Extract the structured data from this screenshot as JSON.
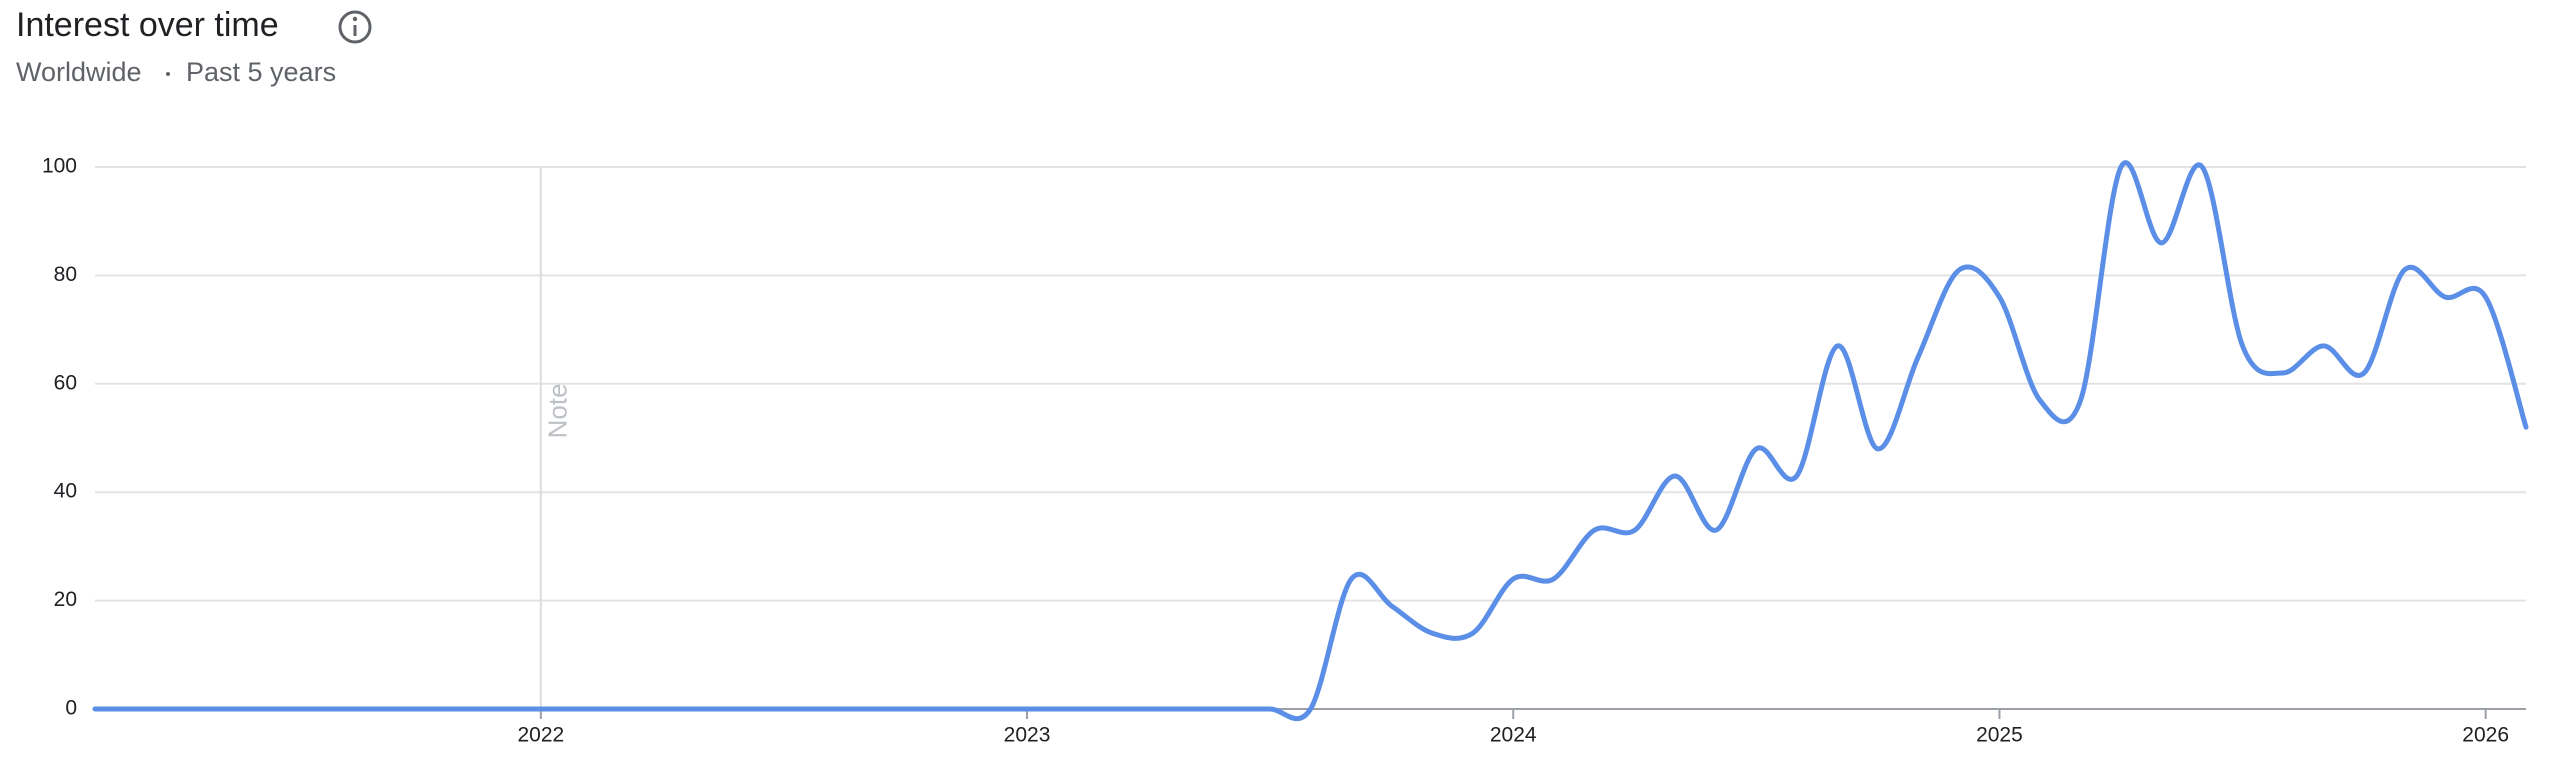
{
  "chart_data": {
    "type": "line",
    "title": "Interest over time",
    "subtitle": [
      "Worldwide",
      "Past 5 years"
    ],
    "note": {
      "x": 2022,
      "label": "Note"
    },
    "x": [
      2021.083,
      2021.167,
      2021.25,
      2021.333,
      2021.417,
      2021.5,
      2021.583,
      2021.667,
      2021.75,
      2021.833,
      2021.917,
      2022.0,
      2022.083,
      2022.167,
      2022.25,
      2022.333,
      2022.417,
      2022.5,
      2022.583,
      2022.667,
      2022.75,
      2022.833,
      2022.917,
      2023.0,
      2023.083,
      2023.167,
      2023.25,
      2023.333,
      2023.417,
      2023.5,
      2023.583,
      2023.667,
      2023.75,
      2023.833,
      2023.917,
      2024.0,
      2024.083,
      2024.167,
      2024.25,
      2024.333,
      2024.417,
      2024.5,
      2024.583,
      2024.667,
      2024.75,
      2024.833,
      2024.917,
      2025.0,
      2025.083,
      2025.167,
      2025.25,
      2025.333,
      2025.417,
      2025.5,
      2025.583,
      2025.667,
      2025.75,
      2025.833,
      2025.917,
      2026.0,
      2026.083
    ],
    "values": [
      0,
      0,
      0,
      0,
      0,
      0,
      0,
      0,
      0,
      0,
      0,
      0,
      0,
      0,
      0,
      0,
      0,
      0,
      0,
      0,
      0,
      0,
      0,
      0,
      0,
      0,
      0,
      0,
      0,
      0,
      0,
      24,
      19,
      14,
      14,
      24,
      24,
      33,
      33,
      43,
      33,
      48,
      43,
      67,
      48,
      65,
      81,
      76,
      57,
      57,
      100,
      86,
      100,
      67,
      62,
      67,
      62,
      81,
      76,
      76,
      52
    ],
    "color": "#5b8ee6",
    "xlim": [
      2021.083,
      2026.083
    ],
    "xticks": [
      2022,
      2023,
      2024,
      2025,
      2026
    ],
    "ylim": [
      0,
      100
    ],
    "yticks": [
      0,
      20,
      40,
      60,
      80,
      100
    ],
    "grid": true
  }
}
